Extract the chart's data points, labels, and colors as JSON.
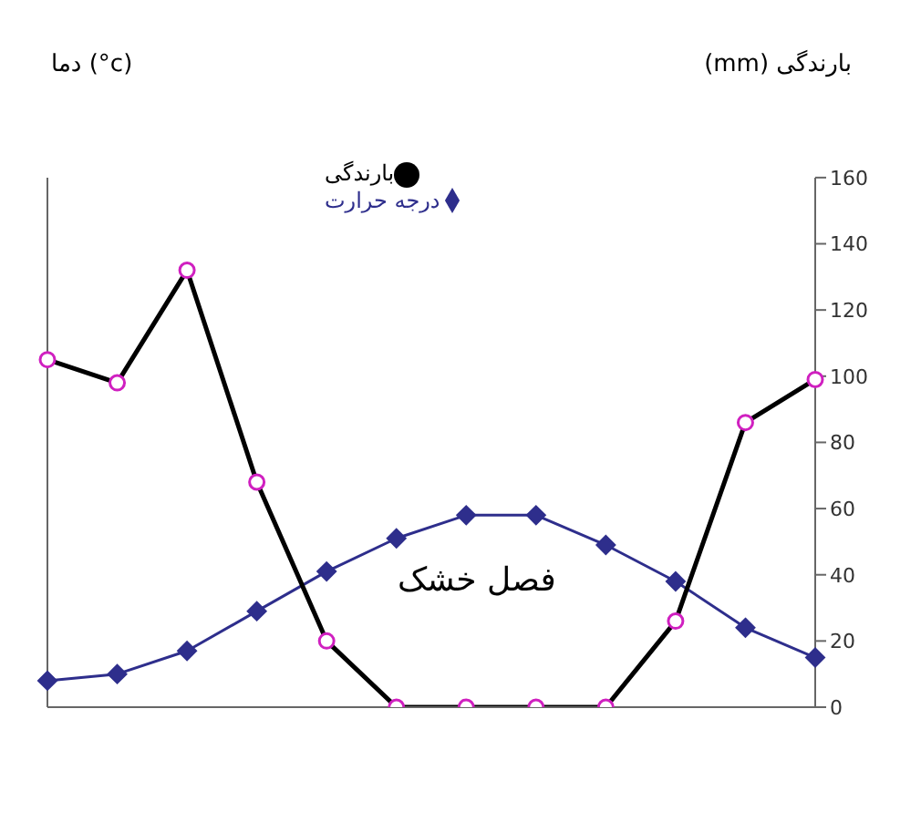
{
  "chart_data": {
    "type": "line",
    "ylabel": "دما (°c)",
    "y2label": "بارندگی (mm)",
    "categories": [
      null,
      null,
      null,
      null,
      null,
      null,
      null,
      null,
      null,
      null,
      null,
      null
    ],
    "series": [
      {
        "name": "درجه حرارت",
        "color": "#2e2e8c",
        "marker": "diamond",
        "values": [
          8,
          10,
          17,
          29,
          41,
          51,
          58,
          58,
          49,
          38,
          24,
          15
        ]
      },
      {
        "name": "بارندگی",
        "color": "#000000",
        "marker": "circle",
        "values": [
          105,
          98,
          132,
          68,
          20,
          0,
          0,
          0,
          0,
          26,
          86,
          99
        ]
      }
    ],
    "ylim": [
      0,
      160
    ],
    "yticks": [
      0,
      20,
      40,
      60,
      80,
      100,
      120,
      140,
      160
    ],
    "tick_labels": "y",
    "legend": "top",
    "annotations": [
      "فصل خشک"
    ]
  }
}
